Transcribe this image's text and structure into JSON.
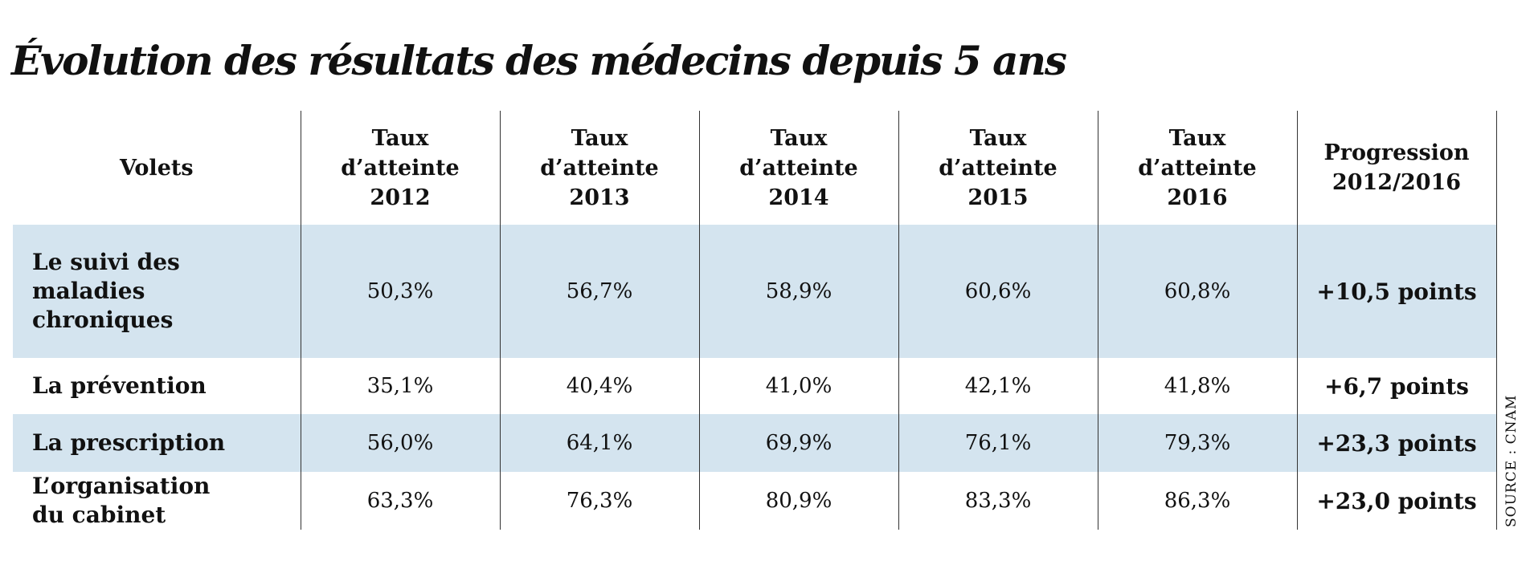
{
  "chart_data": {
    "type": "table",
    "title": "Évolution des résultats des médecins depuis 5 ans",
    "columns": [
      "Volets",
      "Taux d’atteinte 2012",
      "Taux d’atteinte 2013",
      "Taux d’atteinte 2014",
      "Taux d’atteinte 2015",
      "Taux d’atteinte 2016",
      "Progression 2012/2016"
    ],
    "header_lines": [
      [
        "Volets"
      ],
      [
        "Taux",
        "d’atteinte",
        "2012"
      ],
      [
        "Taux",
        "d’atteinte",
        "2013"
      ],
      [
        "Taux",
        "d’atteinte",
        "2014"
      ],
      [
        "Taux",
        "d’atteinte",
        "2015"
      ],
      [
        "Taux",
        "d’atteinte",
        "2016"
      ],
      [
        "Progression",
        "2012/2016"
      ]
    ],
    "x": [
      "2012",
      "2013",
      "2014",
      "2015",
      "2016"
    ],
    "rows": [
      {
        "label": "Le suivi des maladies chroniques",
        "label_lines": [
          "Le suivi des maladies",
          "chroniques"
        ],
        "cells": [
          "50,3%",
          "56,7%",
          "58,9%",
          "60,6%",
          "60,8%"
        ],
        "values": [
          50.3,
          56.7,
          58.9,
          60.6,
          60.8
        ],
        "progression": "+10,5 points",
        "shaded": true
      },
      {
        "label": "La prévention",
        "label_lines": [
          "La prévention"
        ],
        "cells": [
          "35,1%",
          "40,4%",
          "41,0%",
          "42,1%",
          "41,8%"
        ],
        "values": [
          35.1,
          40.4,
          41.0,
          42.1,
          41.8
        ],
        "progression": "+6,7 points",
        "shaded": false
      },
      {
        "label": "La prescription",
        "label_lines": [
          "La prescription"
        ],
        "cells": [
          "56,0%",
          "64,1%",
          "69,9%",
          "76,1%",
          "79,3%"
        ],
        "values": [
          56.0,
          64.1,
          69.9,
          76.1,
          79.3
        ],
        "progression": "+23,3 points",
        "shaded": true
      },
      {
        "label": "L’organisation du cabinet",
        "label_lines": [
          "L’organisation",
          "du cabinet"
        ],
        "cells": [
          "63,3%",
          "76,3%",
          "80,9%",
          "83,3%",
          "86,3%"
        ],
        "values": [
          63.3,
          76.3,
          80.9,
          83.3,
          86.3
        ],
        "progression": "+23,0 points",
        "shaded": false
      }
    ],
    "source": "SOURCE : CNAM"
  },
  "colors": {
    "row_shade": "#d4e4ef",
    "text": "#111111",
    "rule": "#333333"
  }
}
